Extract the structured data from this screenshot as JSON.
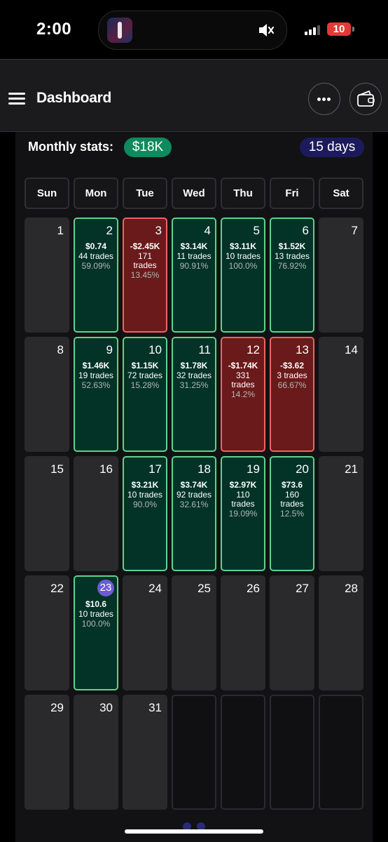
{
  "status_bar": {
    "time": "2:00",
    "battery": "10"
  },
  "header": {
    "title": "Dashboard"
  },
  "stats": {
    "label": "Monthly stats:",
    "total": "$18K",
    "days": "15 days"
  },
  "weekdays": [
    "Sun",
    "Mon",
    "Tue",
    "Wed",
    "Thu",
    "Fri",
    "Sat"
  ],
  "calendar": [
    [
      {
        "day": "1"
      },
      {
        "day": "2",
        "status": "profit",
        "pnl": "$0.74",
        "trades": "44 trades",
        "win_rate": "59.09%"
      },
      {
        "day": "3",
        "status": "loss",
        "pnl": "-$2.45K",
        "trades": "171 trades",
        "win_rate": "13.45%"
      },
      {
        "day": "4",
        "status": "profit",
        "pnl": "$3.14K",
        "trades": "11 trades",
        "win_rate": "90.91%"
      },
      {
        "day": "5",
        "status": "profit",
        "pnl": "$3.11K",
        "trades": "10 trades",
        "win_rate": "100.0%"
      },
      {
        "day": "6",
        "status": "profit",
        "pnl": "$1.52K",
        "trades": "13 trades",
        "win_rate": "76.92%"
      },
      {
        "day": "7"
      }
    ],
    [
      {
        "day": "8"
      },
      {
        "day": "9",
        "status": "profit",
        "pnl": "$1.46K",
        "trades": "19 trades",
        "win_rate": "52.63%"
      },
      {
        "day": "10",
        "status": "profit",
        "pnl": "$1.15K",
        "trades": "72 trades",
        "win_rate": "15.28%"
      },
      {
        "day": "11",
        "status": "profit",
        "pnl": "$1.78K",
        "trades": "32 trades",
        "win_rate": "31.25%"
      },
      {
        "day": "12",
        "status": "loss",
        "pnl": "-$1.74K",
        "trades": "331 trades",
        "win_rate": "14.2%"
      },
      {
        "day": "13",
        "status": "loss",
        "pnl": "-$3.62",
        "trades": "3 trades",
        "win_rate": "66.67%"
      },
      {
        "day": "14"
      }
    ],
    [
      {
        "day": "15"
      },
      {
        "day": "16"
      },
      {
        "day": "17",
        "status": "profit",
        "pnl": "$3.21K",
        "trades": "10 trades",
        "win_rate": "90.0%"
      },
      {
        "day": "18",
        "status": "profit",
        "pnl": "$3.74K",
        "trades": "92 trades",
        "win_rate": "32.61%"
      },
      {
        "day": "19",
        "status": "profit",
        "pnl": "$2.97K",
        "trades": "110 trades",
        "win_rate": "19.09%"
      },
      {
        "day": "20",
        "status": "profit",
        "pnl": "$73.6",
        "trades": "160 trades",
        "win_rate": "12.5%"
      },
      {
        "day": "21"
      }
    ],
    [
      {
        "day": "22"
      },
      {
        "day": "23",
        "status": "profit",
        "pnl": "$10.6",
        "trades": "10 trades",
        "win_rate": "100.0%",
        "today": true
      },
      {
        "day": "24"
      },
      {
        "day": "25"
      },
      {
        "day": "26"
      },
      {
        "day": "27"
      },
      {
        "day": "28"
      }
    ],
    [
      {
        "day": "29"
      },
      {
        "day": "30"
      },
      {
        "day": "31"
      },
      {
        "day": "",
        "status": "empty"
      },
      {
        "day": "",
        "status": "empty"
      },
      {
        "day": "",
        "status": "empty"
      },
      {
        "day": "",
        "status": "empty"
      }
    ]
  ],
  "colors": {
    "profit_bg": "#033326",
    "profit_border": "#5fd28f",
    "loss_bg": "#6a1a1a",
    "loss_border": "#f06262",
    "today": "#6c5bd6",
    "stats_badge": "#0f8a5f",
    "days_badge": "#1d1a5c"
  },
  "icons": {
    "menu": "hamburger-icon",
    "more": "ellipsis-icon",
    "wallet": "wallet-icon"
  }
}
